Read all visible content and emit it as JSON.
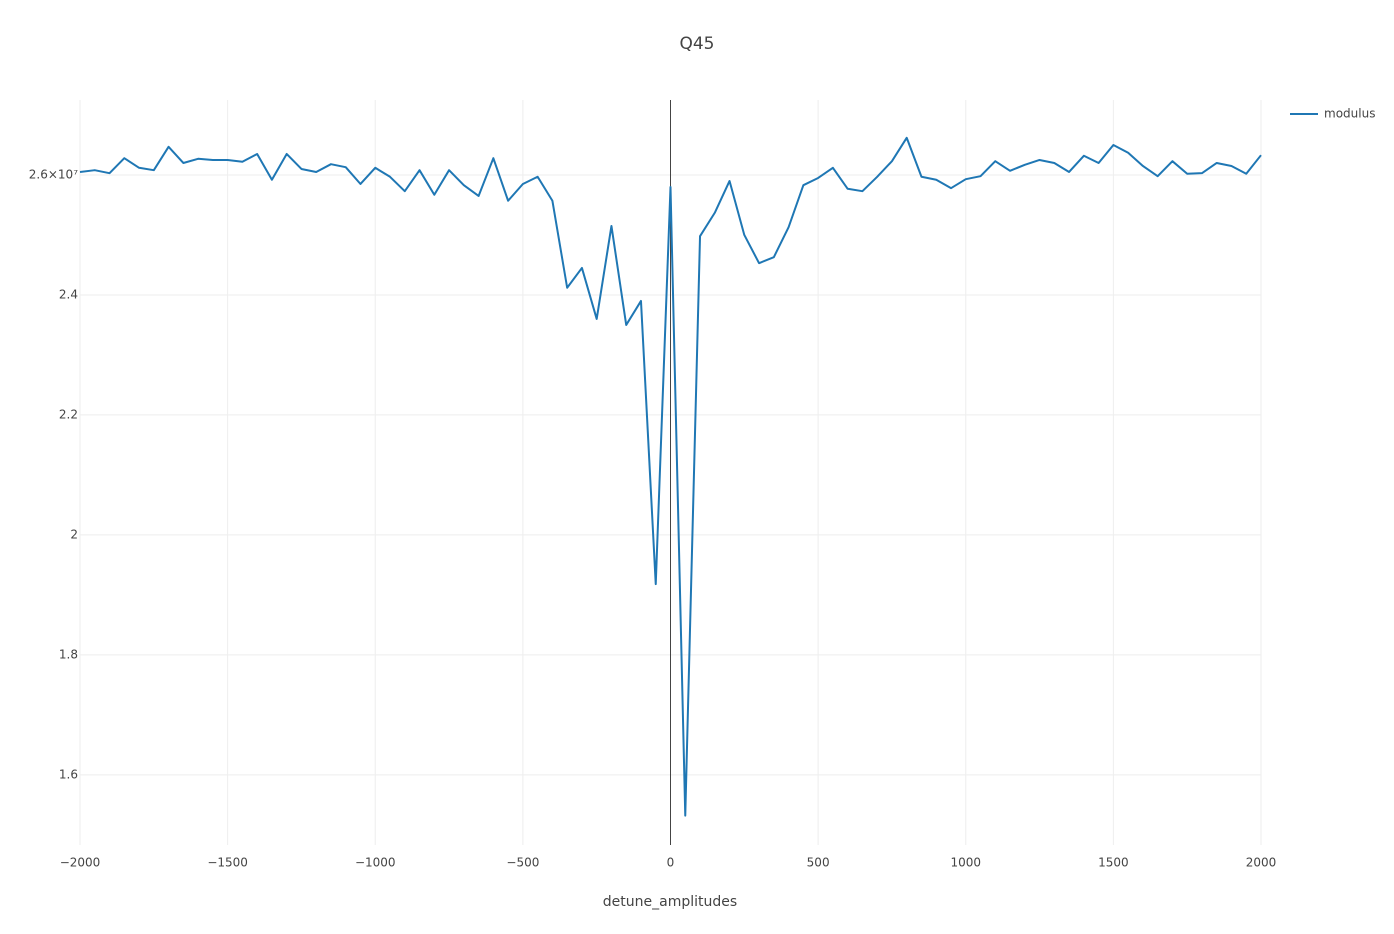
{
  "chart_data": {
    "type": "line",
    "title": "Q45",
    "x_label": "detune_amplitudes",
    "x": [
      -2000,
      -1950,
      -1900,
      -1850,
      -1800,
      -1750,
      -1700,
      -1650,
      -1600,
      -1550,
      -1500,
      -1450,
      -1400,
      -1350,
      -1300,
      -1250,
      -1200,
      -1150,
      -1100,
      -1050,
      -1000,
      -950,
      -900,
      -850,
      -800,
      -750,
      -700,
      -650,
      -600,
      -550,
      -500,
      -450,
      -400,
      -350,
      -300,
      -250,
      -200,
      -150,
      -100,
      -50,
      0,
      50,
      100,
      150,
      200,
      250,
      300,
      350,
      400,
      450,
      500,
      550,
      600,
      650,
      700,
      750,
      800,
      850,
      900,
      950,
      1000,
      1050,
      1100,
      1150,
      1200,
      1250,
      1300,
      1350,
      1400,
      1450,
      1500,
      1550,
      1600,
      1650,
      1700,
      1750,
      1800,
      1850,
      1900,
      1950,
      2000
    ],
    "series": [
      {
        "name": "modulus",
        "color": "#1f77b4",
        "values": [
          26050000,
          26080000,
          26030000,
          26280000,
          26120000,
          26080000,
          26470000,
          26200000,
          26270000,
          26250000,
          26250000,
          26220000,
          26350000,
          25920000,
          26350000,
          26100000,
          26050000,
          26180000,
          26130000,
          25850000,
          26120000,
          25970000,
          25730000,
          26080000,
          25670000,
          26080000,
          25830000,
          25650000,
          26280000,
          25570000,
          25850000,
          25970000,
          25570000,
          24120000,
          24450000,
          23600000,
          25150000,
          23500000,
          23900000,
          19180000,
          25800000,
          15320000,
          24980000,
          25370000,
          25900000,
          25000000,
          24530000,
          24630000,
          25130000,
          25830000,
          25950000,
          26120000,
          25770000,
          25730000,
          25970000,
          26230000,
          26620000,
          25970000,
          25920000,
          25780000,
          25930000,
          25980000,
          26230000,
          26070000,
          26170000,
          26250000,
          26200000,
          26050000,
          26320000,
          26200000,
          26500000,
          26370000,
          26150000,
          25980000,
          26230000,
          26020000,
          26030000,
          26200000,
          26150000,
          26020000,
          26330000
        ]
      }
    ],
    "xlim": [
      -2000,
      2000
    ],
    "xticks": [
      {
        "value": -2000,
        "label": "−2000"
      },
      {
        "value": -1500,
        "label": "−1500"
      },
      {
        "value": -1000,
        "label": "−1000"
      },
      {
        "value": -500,
        "label": "−500"
      },
      0,
      500,
      1000,
      1500,
      2000
    ],
    "ylim": [
      14830000,
      27250000
    ],
    "yticks": [
      {
        "value": 16000000,
        "label": "1.6"
      },
      {
        "value": 18000000,
        "label": "1.8"
      },
      {
        "value": 20000000,
        "label": "2"
      },
      {
        "value": 22000000,
        "label": "2.2"
      },
      {
        "value": 24000000,
        "label": "2.4"
      },
      {
        "value": 26000000,
        "label": "2.6×10⁷"
      }
    ],
    "grid": true,
    "legend": "top-right"
  }
}
